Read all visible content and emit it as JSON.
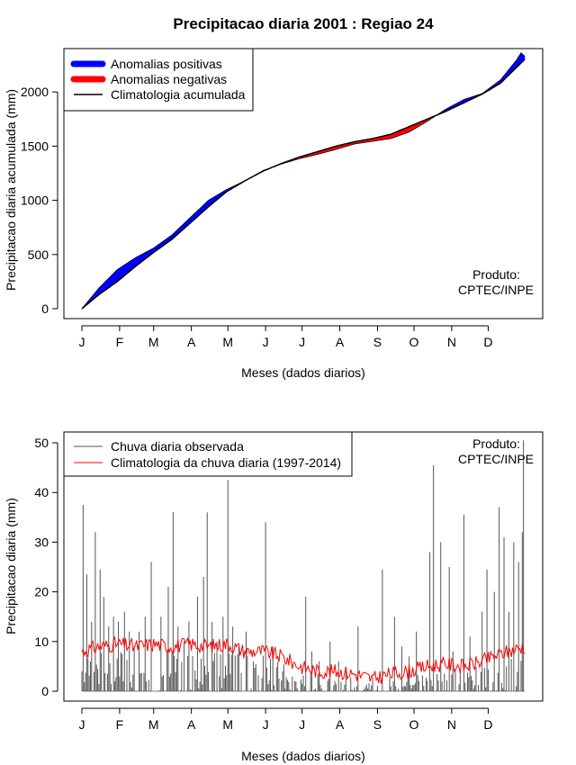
{
  "title": "Precipitacao diaria 2001 : Regiao 24",
  "months": [
    "J",
    "F",
    "M",
    "A",
    "M",
    "J",
    "J",
    "A",
    "S",
    "O",
    "N",
    "D"
  ],
  "month_starts": [
    1,
    32,
    60,
    91,
    121,
    152,
    182,
    213,
    244,
    274,
    305,
    335
  ],
  "colors": {
    "positive": "#0000ff",
    "negative": "#ff0000",
    "clim_line": "#000000",
    "observed_bar": "#555555",
    "clim_rain": "#ff0000"
  },
  "chart_data": [
    {
      "type": "area",
      "ylabel": "Precipitacao diaria acumulada (mm)",
      "xlabel": "Meses (dados diarios)",
      "yticks": [
        0,
        500,
        1000,
        1500,
        2000
      ],
      "ylim": [
        0,
        2400
      ],
      "xlim": [
        1,
        365
      ],
      "legend": [
        "Anomalias positivas",
        "Anomalias negativas",
        "Climatologia acumulada"
      ],
      "annotation": [
        "Produto:",
        "CPTEC/INPE"
      ],
      "climatology": {
        "days": [
          1,
          15,
          30,
          45,
          60,
          75,
          90,
          105,
          120,
          135,
          150,
          165,
          180,
          195,
          210,
          225,
          240,
          255,
          270,
          285,
          300,
          315,
          330,
          345,
          365
        ],
        "values": [
          0,
          130,
          250,
          390,
          520,
          640,
          790,
          940,
          1080,
          1180,
          1270,
          1340,
          1400,
          1450,
          1500,
          1540,
          1570,
          1610,
          1680,
          1750,
          1820,
          1900,
          1980,
          2080,
          2300
        ]
      },
      "observed": {
        "days": [
          1,
          15,
          30,
          45,
          60,
          75,
          90,
          105,
          120,
          135,
          150,
          165,
          180,
          195,
          210,
          225,
          240,
          255,
          270,
          285,
          300,
          315,
          330,
          345,
          358,
          362,
          365
        ],
        "values": [
          0,
          190,
          360,
          470,
          560,
          680,
          840,
          1000,
          1100,
          1180,
          1275,
          1335,
          1385,
          1425,
          1470,
          1520,
          1545,
          1570,
          1630,
          1730,
          1840,
          1930,
          1985,
          2110,
          2290,
          2360,
          2330
        ]
      }
    },
    {
      "type": "bar",
      "ylabel": "Precipitacao diaria (mm)",
      "xlabel": "Meses (dados diarios)",
      "yticks": [
        0,
        10,
        20,
        30,
        40,
        50
      ],
      "ylim": [
        0,
        50
      ],
      "xlim": [
        1,
        365
      ],
      "legend": [
        "Chuva diaria observada",
        "Climatologia da chuva diaria (1997-2014)"
      ],
      "annotation": [
        "Produto:",
        "CPTEC/INPE"
      ],
      "observed_peaks": [
        [
          2,
          37.5
        ],
        [
          5,
          23.5
        ],
        [
          9,
          14
        ],
        [
          12,
          32
        ],
        [
          16,
          24.5
        ],
        [
          19,
          19
        ],
        [
          23,
          13
        ],
        [
          27,
          15
        ],
        [
          31,
          14
        ],
        [
          36,
          16
        ],
        [
          40,
          12
        ],
        [
          44,
          9
        ],
        [
          48,
          12
        ],
        [
          53,
          15
        ],
        [
          58,
          26
        ],
        [
          66,
          15
        ],
        [
          72,
          21
        ],
        [
          76,
          36
        ],
        [
          80,
          13
        ],
        [
          85,
          10
        ],
        [
          89,
          14
        ],
        [
          96,
          19
        ],
        [
          101,
          23
        ],
        [
          104,
          36
        ],
        [
          108,
          14
        ],
        [
          112,
          10
        ],
        [
          117,
          15
        ],
        [
          121,
          42.5
        ],
        [
          125,
          13
        ],
        [
          130,
          9
        ],
        [
          136,
          12
        ],
        [
          142,
          6
        ],
        [
          152,
          34
        ],
        [
          158,
          9
        ],
        [
          166,
          4
        ],
        [
          185,
          19
        ],
        [
          190,
          8
        ],
        [
          196,
          6
        ],
        [
          205,
          10
        ],
        [
          212,
          6
        ],
        [
          218,
          4
        ],
        [
          228,
          13
        ],
        [
          240,
          3
        ],
        [
          248,
          24.5
        ],
        [
          258,
          15
        ],
        [
          264,
          9
        ],
        [
          270,
          7
        ],
        [
          276,
          12
        ],
        [
          287,
          28
        ],
        [
          290,
          45.5
        ],
        [
          296,
          30
        ],
        [
          303,
          25
        ],
        [
          306,
          8
        ],
        [
          315,
          35.5
        ],
        [
          320,
          11
        ],
        [
          330,
          16
        ],
        [
          334,
          24.5
        ],
        [
          340,
          20
        ],
        [
          344,
          37
        ],
        [
          348,
          31
        ],
        [
          352,
          16
        ],
        [
          356,
          30
        ],
        [
          360,
          26
        ],
        [
          363,
          32
        ],
        [
          364,
          50.5
        ]
      ],
      "climatology": {
        "days": [
          1,
          15,
          30,
          45,
          60,
          75,
          90,
          105,
          120,
          135,
          150,
          165,
          180,
          195,
          210,
          225,
          240,
          255,
          270,
          285,
          300,
          315,
          330,
          345,
          365
        ],
        "values": [
          8,
          9,
          9.5,
          9,
          9.5,
          9,
          9.5,
          9,
          9.5,
          8,
          8,
          7,
          5,
          4,
          4,
          3.5,
          2.5,
          3.5,
          4,
          5,
          5.5,
          5,
          6,
          7.5,
          9
        ]
      }
    }
  ]
}
